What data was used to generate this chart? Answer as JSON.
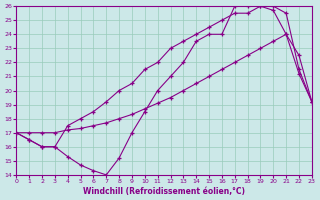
{
  "bg_color": "#cce8e8",
  "line_color": "#880088",
  "grid_color": "#99ccbb",
  "xlabel": "Windchill (Refroidissement éolien,°C)",
  "xlim": [
    0,
    23
  ],
  "ylim": [
    14,
    26
  ],
  "xticks": [
    0,
    1,
    2,
    3,
    4,
    5,
    6,
    7,
    8,
    9,
    10,
    11,
    12,
    13,
    14,
    15,
    16,
    17,
    18,
    19,
    20,
    21,
    22,
    23
  ],
  "yticks": [
    14,
    15,
    16,
    17,
    18,
    19,
    20,
    21,
    22,
    23,
    24,
    25,
    26
  ],
  "line1_x": [
    0,
    1,
    2,
    3,
    4,
    5,
    6,
    7,
    8,
    9,
    10,
    11,
    12,
    13,
    14,
    15,
    16,
    17,
    18,
    19,
    20,
    21,
    22,
    23
  ],
  "line1_y": [
    17.0,
    16.5,
    16.0,
    16.0,
    15.3,
    14.7,
    14.3,
    14.0,
    15.2,
    17.0,
    18.5,
    20.0,
    21.0,
    22.0,
    23.5,
    24.0,
    24.0,
    26.0,
    26.0,
    26.0,
    25.7,
    24.0,
    21.2,
    19.2
  ],
  "line2_x": [
    0,
    1,
    2,
    3,
    4,
    5,
    6,
    7,
    8,
    9,
    10,
    11,
    12,
    13,
    14,
    15,
    16,
    17,
    18,
    19,
    20,
    21,
    22,
    23
  ],
  "line2_y": [
    17.0,
    17.0,
    17.0,
    17.0,
    17.2,
    17.3,
    17.5,
    17.7,
    18.0,
    18.3,
    18.7,
    19.1,
    19.5,
    20.0,
    20.5,
    21.0,
    21.5,
    22.0,
    22.5,
    23.0,
    23.5,
    24.0,
    22.5,
    19.2
  ],
  "line3_x": [
    0,
    1,
    2,
    3,
    4,
    5,
    6,
    7,
    8,
    9,
    10,
    11,
    12,
    13,
    14,
    15,
    16,
    17,
    18,
    19,
    20,
    21,
    22,
    23
  ],
  "line3_y": [
    17.0,
    16.5,
    16.0,
    16.0,
    17.5,
    18.0,
    18.5,
    19.2,
    20.0,
    20.5,
    21.5,
    22.0,
    23.0,
    23.5,
    24.0,
    24.5,
    25.0,
    25.5,
    25.5,
    26.0,
    26.0,
    25.5,
    21.5,
    19.2
  ]
}
